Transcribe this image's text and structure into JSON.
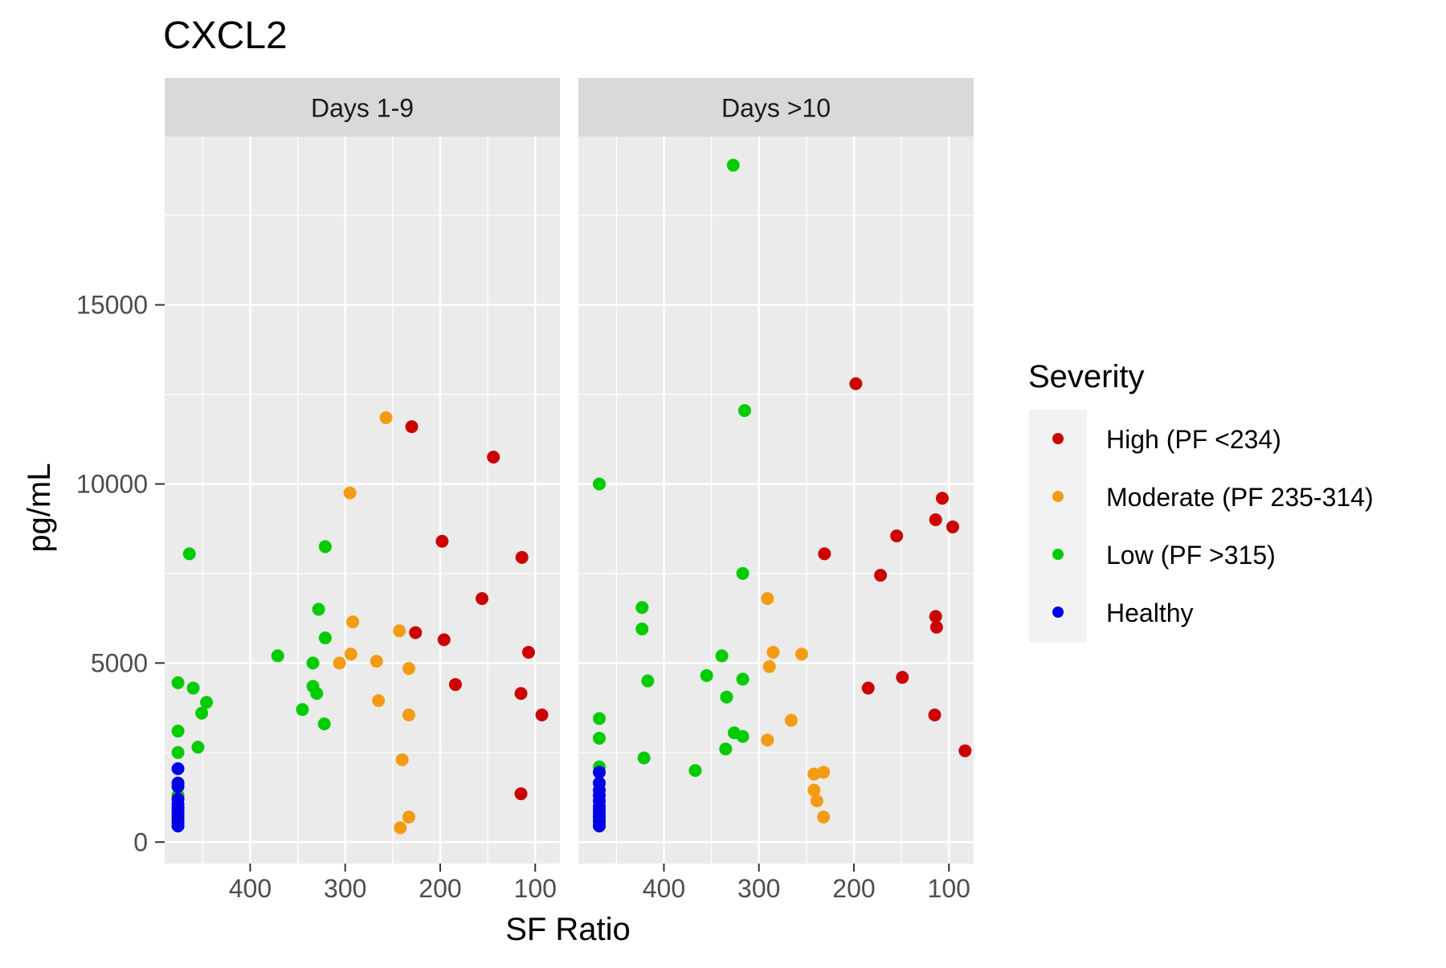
{
  "chart_data": {
    "type": "scatter",
    "title": "CXCL2",
    "xlabel": "SF Ratio",
    "ylabel": "pg/mL",
    "x_reversed": true,
    "xlim": [
      490,
      74
    ],
    "ylim": [
      -600,
      19700
    ],
    "x_ticks": [
      400,
      300,
      200,
      100
    ],
    "y_ticks": [
      0,
      5000,
      10000,
      15000
    ],
    "grid": true,
    "legend_position": "right",
    "panels": [
      {
        "label": "Days 1-9",
        "series": [
          {
            "name": "High (PF <234)",
            "points": [
              {
                "x": 230,
                "y": 11600
              },
              {
                "x": 144,
                "y": 10750
              },
              {
                "x": 198,
                "y": 8400
              },
              {
                "x": 114,
                "y": 7950
              },
              {
                "x": 156,
                "y": 6800
              },
              {
                "x": 226,
                "y": 5850
              },
              {
                "x": 196,
                "y": 5650
              },
              {
                "x": 107,
                "y": 5300
              },
              {
                "x": 184,
                "y": 4400
              },
              {
                "x": 115,
                "y": 4150
              },
              {
                "x": 93,
                "y": 3550
              },
              {
                "x": 115,
                "y": 1350
              }
            ]
          },
          {
            "name": "Moderate (PF 235-314)",
            "points": [
              {
                "x": 257,
                "y": 11850
              },
              {
                "x": 295,
                "y": 9750
              },
              {
                "x": 292,
                "y": 6150
              },
              {
                "x": 243,
                "y": 5900
              },
              {
                "x": 294,
                "y": 5250
              },
              {
                "x": 267,
                "y": 5050
              },
              {
                "x": 306,
                "y": 5000
              },
              {
                "x": 233,
                "y": 4850
              },
              {
                "x": 265,
                "y": 3950
              },
              {
                "x": 233,
                "y": 3550
              },
              {
                "x": 240,
                "y": 2300
              },
              {
                "x": 233,
                "y": 700
              },
              {
                "x": 242,
                "y": 400
              }
            ]
          },
          {
            "name": "Low (PF >315)",
            "points": [
              {
                "x": 464,
                "y": 8050
              },
              {
                "x": 321,
                "y": 8250
              },
              {
                "x": 328,
                "y": 6500
              },
              {
                "x": 321,
                "y": 5700
              },
              {
                "x": 371,
                "y": 5200
              },
              {
                "x": 334,
                "y": 5000
              },
              {
                "x": 476,
                "y": 4450
              },
              {
                "x": 460,
                "y": 4300
              },
              {
                "x": 334,
                "y": 4350
              },
              {
                "x": 330,
                "y": 4150
              },
              {
                "x": 446,
                "y": 3900
              },
              {
                "x": 451,
                "y": 3600
              },
              {
                "x": 345,
                "y": 3700
              },
              {
                "x": 322,
                "y": 3300
              },
              {
                "x": 476,
                "y": 3100
              },
              {
                "x": 455,
                "y": 2650
              },
              {
                "x": 476,
                "y": 2500
              },
              {
                "x": 476,
                "y": 1300
              },
              {
                "x": 476,
                "y": 800
              },
              {
                "x": 476,
                "y": 600
              }
            ]
          },
          {
            "name": "Healthy",
            "points": [
              {
                "x": 476,
                "y": 2050
              },
              {
                "x": 476,
                "y": 1650
              },
              {
                "x": 476,
                "y": 1550
              },
              {
                "x": 476,
                "y": 1200
              },
              {
                "x": 476,
                "y": 1050
              },
              {
                "x": 476,
                "y": 950
              },
              {
                "x": 476,
                "y": 850
              },
              {
                "x": 476,
                "y": 750
              },
              {
                "x": 476,
                "y": 650
              },
              {
                "x": 476,
                "y": 550
              },
              {
                "x": 476,
                "y": 450
              }
            ]
          }
        ]
      },
      {
        "label": "Days >10",
        "series": [
          {
            "name": "High (PF <234)",
            "points": [
              {
                "x": 198,
                "y": 12800
              },
              {
                "x": 107,
                "y": 9600
              },
              {
                "x": 114,
                "y": 9000
              },
              {
                "x": 96,
                "y": 8800
              },
              {
                "x": 155,
                "y": 8550
              },
              {
                "x": 231,
                "y": 8050
              },
              {
                "x": 172,
                "y": 7450
              },
              {
                "x": 114,
                "y": 6300
              },
              {
                "x": 113,
                "y": 6000
              },
              {
                "x": 149,
                "y": 4600
              },
              {
                "x": 185,
                "y": 4300
              },
              {
                "x": 115,
                "y": 3550
              },
              {
                "x": 83,
                "y": 2550
              }
            ]
          },
          {
            "name": "Moderate (PF 235-314)",
            "points": [
              {
                "x": 291,
                "y": 6800
              },
              {
                "x": 285,
                "y": 5300
              },
              {
                "x": 255,
                "y": 5250
              },
              {
                "x": 289,
                "y": 4900
              },
              {
                "x": 266,
                "y": 3400
              },
              {
                "x": 291,
                "y": 2850
              },
              {
                "x": 232,
                "y": 1950
              },
              {
                "x": 242,
                "y": 1900
              },
              {
                "x": 242,
                "y": 1450
              },
              {
                "x": 239,
                "y": 1150
              },
              {
                "x": 232,
                "y": 700
              }
            ]
          },
          {
            "name": "Low (PF >315)",
            "points": [
              {
                "x": 327,
                "y": 18900
              },
              {
                "x": 315,
                "y": 12050
              },
              {
                "x": 468,
                "y": 10000
              },
              {
                "x": 317,
                "y": 7500
              },
              {
                "x": 423,
                "y": 6550
              },
              {
                "x": 423,
                "y": 5950
              },
              {
                "x": 339,
                "y": 5200
              },
              {
                "x": 355,
                "y": 4650
              },
              {
                "x": 317,
                "y": 4550
              },
              {
                "x": 417,
                "y": 4500
              },
              {
                "x": 334,
                "y": 4050
              },
              {
                "x": 468,
                "y": 3450
              },
              {
                "x": 326,
                "y": 3050
              },
              {
                "x": 317,
                "y": 2950
              },
              {
                "x": 468,
                "y": 2900
              },
              {
                "x": 335,
                "y": 2600
              },
              {
                "x": 421,
                "y": 2350
              },
              {
                "x": 468,
                "y": 2100
              },
              {
                "x": 367,
                "y": 2000
              },
              {
                "x": 468,
                "y": 550
              }
            ]
          },
          {
            "name": "Healthy",
            "points": [
              {
                "x": 468,
                "y": 1950
              },
              {
                "x": 468,
                "y": 1650
              },
              {
                "x": 468,
                "y": 1450
              },
              {
                "x": 468,
                "y": 1300
              },
              {
                "x": 468,
                "y": 1150
              },
              {
                "x": 468,
                "y": 1000
              },
              {
                "x": 468,
                "y": 900
              },
              {
                "x": 468,
                "y": 800
              },
              {
                "x": 468,
                "y": 700
              },
              {
                "x": 468,
                "y": 600
              },
              {
                "x": 468,
                "y": 450
              }
            ]
          }
        ]
      }
    ],
    "legend": {
      "title": "Severity",
      "items": [
        {
          "label": "High (PF <234)",
          "color": "#CC0000"
        },
        {
          "label": "Moderate (PF 235-314)",
          "color": "#F39C12"
        },
        {
          "label": "Low (PF >315)",
          "color": "#00CC00"
        },
        {
          "label": "Healthy",
          "color": "#0000E6"
        }
      ]
    },
    "colors": {
      "panel_background": "#EBEBEB",
      "strip_background": "#D9D9D9",
      "grid": "#FFFFFF"
    }
  }
}
